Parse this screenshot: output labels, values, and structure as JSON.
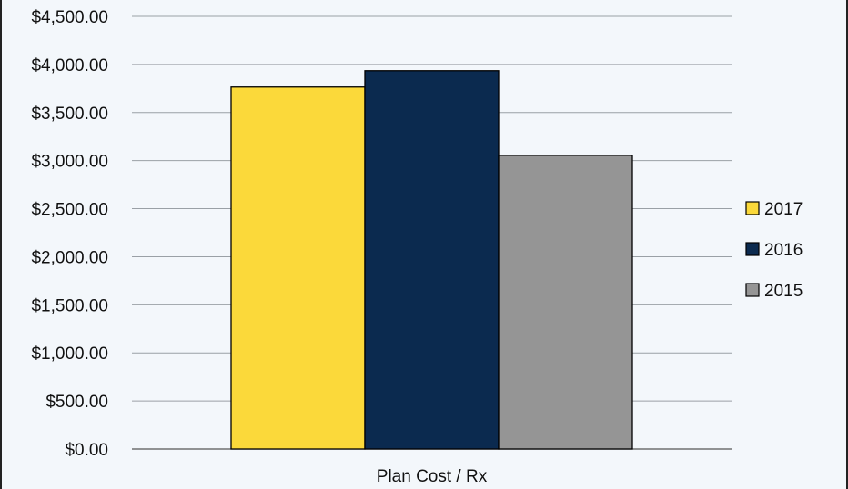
{
  "chart_data": {
    "type": "bar",
    "categories": [
      "Plan Cost / Rx"
    ],
    "series": [
      {
        "name": "2017",
        "values": [
          3765
        ],
        "color": "#fbd93a"
      },
      {
        "name": "2016",
        "values": [
          3935
        ],
        "color": "#0b2a4f"
      },
      {
        "name": "2015",
        "values": [
          3055
        ],
        "color": "#959595"
      }
    ],
    "yticks": [
      "$0.00",
      "$500.00",
      "$1,000.00",
      "$1,500.00",
      "$2,000.00",
      "$2,500.00",
      "$3,000.00",
      "$3,500.00",
      "$4,000.00",
      "$4,500.00"
    ],
    "ylim": [
      0,
      4500
    ],
    "ystep": 500,
    "grid": true,
    "legend_position": "right",
    "legend_order": [
      "2017",
      "2016",
      "2015"
    ]
  }
}
